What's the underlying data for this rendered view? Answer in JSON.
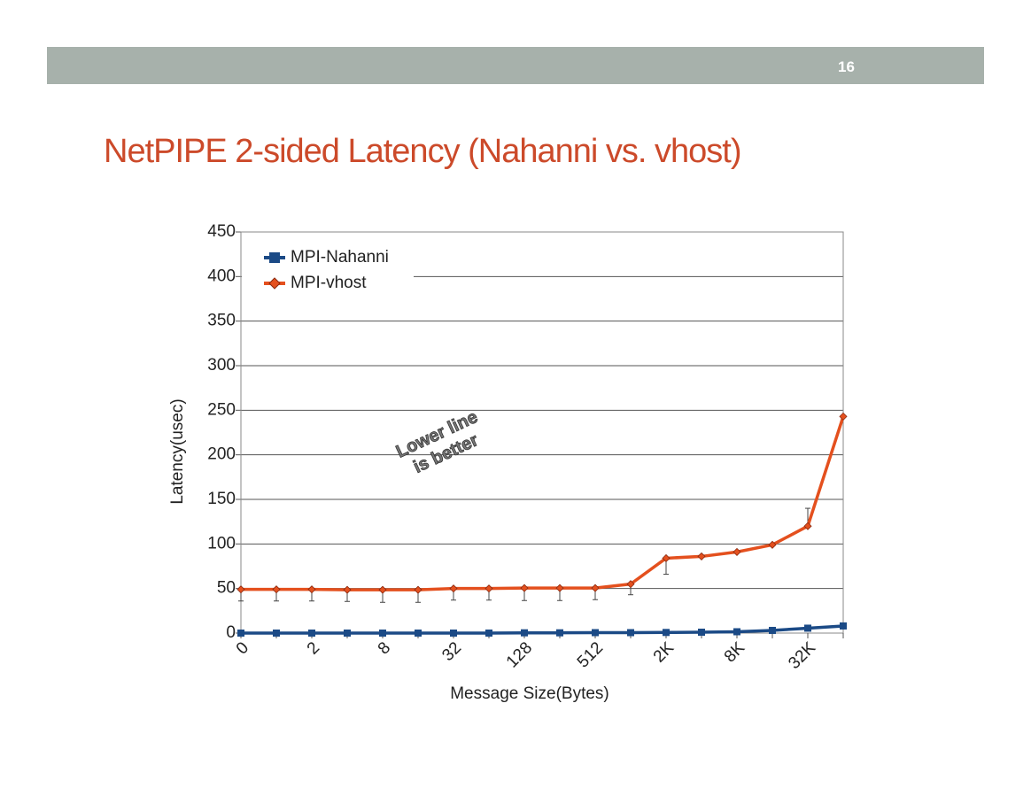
{
  "slide": {
    "number": "16",
    "title": "NetPIPE 2-sided Latency (Nahanni vs. vhost)"
  },
  "chart_data": {
    "type": "line",
    "x_label": "Message Size(Bytes)",
    "y_label": "Latency(usec)",
    "categories": [
      "0",
      null,
      "2",
      null,
      "8",
      null,
      "32",
      null,
      "128",
      null,
      "512",
      null,
      "2K",
      null,
      "8K",
      null,
      "32K",
      null
    ],
    "ylim": [
      0,
      450
    ],
    "yticks": [
      0,
      50,
      100,
      150,
      200,
      250,
      300,
      350,
      400,
      450
    ],
    "grid": true,
    "legend": "top-left",
    "annotation": [
      "Lower line",
      "is better"
    ],
    "series": [
      {
        "name": "MPI-Nahanni",
        "color": "#1b4a86",
        "marker": "square",
        "values": [
          0,
          0,
          0,
          0,
          0,
          0,
          0,
          0,
          0.3,
          0.3,
          0.5,
          0.5,
          0.7,
          1,
          1.5,
          3,
          5.5,
          8
        ]
      },
      {
        "name": "MPI-vhost",
        "color": "#e4501e",
        "marker": "diamond",
        "values": [
          49,
          49,
          49,
          48.5,
          48.5,
          48.5,
          50,
          50,
          50.5,
          50.5,
          50.5,
          55,
          84,
          86,
          91,
          99,
          120,
          243
        ],
        "error_low": [
          13,
          13,
          13,
          13,
          14,
          14,
          13,
          13,
          14,
          14,
          13,
          12,
          18,
          0,
          0,
          0,
          0,
          0
        ],
        "error_high": [
          0,
          0,
          0,
          0,
          0,
          0,
          0,
          0,
          0,
          0,
          0,
          0,
          0,
          0,
          0,
          0,
          20,
          0
        ]
      }
    ]
  }
}
